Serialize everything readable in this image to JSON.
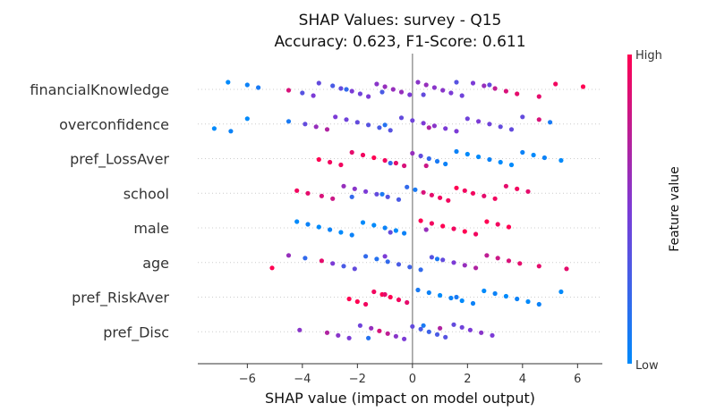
{
  "chart_data": {
    "type": "scatter",
    "title": "SHAP Values: survey - Q15",
    "subtitle": "Accuracy: 0.623, F1-Score: 0.611",
    "xlabel": "SHAP value (impact on model output)",
    "ylabel": "",
    "xlim": [
      -7.8,
      6.9
    ],
    "x_ticks": [
      "−6",
      "−4",
      "−2",
      "0",
      "2",
      "4",
      "6"
    ],
    "x_tick_values": [
      -6,
      -4,
      -2,
      0,
      2,
      4,
      6
    ],
    "colorbar": {
      "label": "Feature value",
      "high": "High",
      "low": "Low",
      "low_color": "#008afb",
      "mid_color": "#7c3bd6",
      "high_color": "#ff0052"
    },
    "grid": false,
    "zero_line": true,
    "features": [
      {
        "name": "financialKnowledge",
        "points": [
          [
            -6.7,
            0.0
          ],
          [
            -6.0,
            0.05
          ],
          [
            -5.6,
            0.1
          ],
          [
            -4.5,
            0.85
          ],
          [
            -4.0,
            0.35
          ],
          [
            -3.6,
            0.5
          ],
          [
            -3.4,
            0.4
          ],
          [
            -2.9,
            0.3
          ],
          [
            -2.6,
            0.4
          ],
          [
            -2.2,
            0.5
          ],
          [
            -1.9,
            0.45
          ],
          [
            -1.6,
            0.5
          ],
          [
            -1.3,
            0.55
          ],
          [
            -1.0,
            0.6
          ],
          [
            -0.7,
            0.6
          ],
          [
            -0.4,
            0.6
          ],
          [
            -0.1,
            0.5
          ],
          [
            0.2,
            0.55
          ],
          [
            0.5,
            0.6
          ],
          [
            0.8,
            0.55
          ],
          [
            1.1,
            0.55
          ],
          [
            1.4,
            0.5
          ],
          [
            1.8,
            0.45
          ],
          [
            2.2,
            0.5
          ],
          [
            2.6,
            0.6
          ],
          [
            3.0,
            0.75
          ],
          [
            3.4,
            0.85
          ],
          [
            3.8,
            0.9
          ],
          [
            4.6,
            0.9
          ],
          [
            5.2,
            0.95
          ],
          [
            6.2,
            1.0
          ],
          [
            -2.4,
            0.2
          ],
          [
            -1.1,
            0.3
          ],
          [
            0.4,
            0.4
          ],
          [
            1.6,
            0.35
          ],
          [
            2.8,
            0.4
          ]
        ]
      },
      {
        "name": "overconfidence",
        "points": [
          [
            -7.2,
            0.0
          ],
          [
            -6.6,
            0.05
          ],
          [
            -6.0,
            0.0
          ],
          [
            -4.5,
            0.1
          ],
          [
            -3.9,
            0.4
          ],
          [
            -3.5,
            0.6
          ],
          [
            -3.1,
            0.7
          ],
          [
            -2.8,
            0.5
          ],
          [
            -2.4,
            0.45
          ],
          [
            -2.0,
            0.4
          ],
          [
            -1.6,
            0.35
          ],
          [
            -1.2,
            0.3
          ],
          [
            -0.8,
            0.35
          ],
          [
            -0.4,
            0.4
          ],
          [
            0.0,
            0.45
          ],
          [
            0.4,
            0.5
          ],
          [
            0.8,
            0.55
          ],
          [
            1.2,
            0.5
          ],
          [
            1.6,
            0.5
          ],
          [
            2.0,
            0.45
          ],
          [
            2.4,
            0.5
          ],
          [
            2.8,
            0.45
          ],
          [
            3.2,
            0.4
          ],
          [
            3.6,
            0.4
          ],
          [
            4.0,
            0.4
          ],
          [
            4.6,
            0.85
          ],
          [
            5.0,
            0.1
          ],
          [
            -1.0,
            0.15
          ],
          [
            0.6,
            0.7
          ]
        ]
      },
      {
        "name": "pref_LossAver",
        "points": [
          [
            -3.4,
            1.0
          ],
          [
            -3.0,
            0.95
          ],
          [
            -2.6,
            0.95
          ],
          [
            -2.2,
            0.9
          ],
          [
            -1.8,
            0.95
          ],
          [
            -1.4,
            1.0
          ],
          [
            -1.0,
            0.95
          ],
          [
            -0.6,
            0.9
          ],
          [
            -0.3,
            0.85
          ],
          [
            0.0,
            0.6
          ],
          [
            0.3,
            0.4
          ],
          [
            0.6,
            0.2
          ],
          [
            0.9,
            0.1
          ],
          [
            1.2,
            0.05
          ],
          [
            1.6,
            0.05
          ],
          [
            2.0,
            0.0
          ],
          [
            2.4,
            0.0
          ],
          [
            2.8,
            0.05
          ],
          [
            3.2,
            0.0
          ],
          [
            3.6,
            0.0
          ],
          [
            4.0,
            0.05
          ],
          [
            4.4,
            0.0
          ],
          [
            4.8,
            0.05
          ],
          [
            5.4,
            0.0
          ],
          [
            -0.8,
            0.2
          ],
          [
            0.5,
            0.8
          ]
        ]
      },
      {
        "name": "school",
        "points": [
          [
            -4.2,
            0.95
          ],
          [
            -3.8,
            0.9
          ],
          [
            -3.3,
            0.85
          ],
          [
            -2.9,
            0.8
          ],
          [
            -2.5,
            0.6
          ],
          [
            -2.1,
            0.55
          ],
          [
            -1.7,
            0.5
          ],
          [
            -1.3,
            0.4
          ],
          [
            -0.9,
            0.35
          ],
          [
            -0.5,
            0.3
          ],
          [
            -0.2,
            0.2
          ],
          [
            0.1,
            0.1
          ],
          [
            0.4,
            0.85
          ],
          [
            0.7,
            0.9
          ],
          [
            1.0,
            0.95
          ],
          [
            1.3,
            0.95
          ],
          [
            1.6,
            1.0
          ],
          [
            1.9,
            0.95
          ],
          [
            2.2,
            0.95
          ],
          [
            2.6,
            0.9
          ],
          [
            3.0,
            0.95
          ],
          [
            3.4,
            0.9
          ],
          [
            3.8,
            0.95
          ],
          [
            4.2,
            0.9
          ],
          [
            -1.1,
            0.1
          ],
          [
            -2.2,
            0.2
          ]
        ]
      },
      {
        "name": "male",
        "points": [
          [
            -4.2,
            0.0
          ],
          [
            -3.8,
            0.05
          ],
          [
            -3.4,
            0.0
          ],
          [
            -3.0,
            0.05
          ],
          [
            -2.6,
            0.0
          ],
          [
            -2.2,
            0.05
          ],
          [
            -1.8,
            0.0
          ],
          [
            -1.4,
            0.0
          ],
          [
            -1.0,
            0.05
          ],
          [
            -0.6,
            0.0
          ],
          [
            -0.3,
            0.05
          ],
          [
            0.3,
            1.0
          ],
          [
            0.7,
            0.95
          ],
          [
            1.1,
            1.0
          ],
          [
            1.5,
            0.95
          ],
          [
            1.9,
            1.0
          ],
          [
            2.3,
            0.95
          ],
          [
            2.7,
            1.0
          ],
          [
            3.1,
            0.95
          ],
          [
            3.5,
            1.0
          ],
          [
            0.5,
            0.6
          ],
          [
            -0.8,
            0.4
          ]
        ]
      },
      {
        "name": "age",
        "points": [
          [
            -5.1,
            1.0
          ],
          [
            -4.5,
            0.6
          ],
          [
            -3.9,
            0.2
          ],
          [
            -3.3,
            0.9
          ],
          [
            -2.9,
            0.5
          ],
          [
            -2.5,
            0.3
          ],
          [
            -2.1,
            0.4
          ],
          [
            -1.7,
            0.2
          ],
          [
            -1.3,
            0.15
          ],
          [
            -0.9,
            0.2
          ],
          [
            -0.5,
            0.3
          ],
          [
            -0.1,
            0.25
          ],
          [
            0.3,
            0.2
          ],
          [
            0.7,
            0.35
          ],
          [
            1.1,
            0.4
          ],
          [
            1.5,
            0.5
          ],
          [
            1.9,
            0.6
          ],
          [
            2.3,
            0.7
          ],
          [
            2.7,
            0.75
          ],
          [
            3.1,
            0.8
          ],
          [
            3.5,
            0.85
          ],
          [
            3.9,
            0.9
          ],
          [
            4.6,
            0.9
          ],
          [
            5.6,
            0.9
          ],
          [
            -1.0,
            0.5
          ],
          [
            0.9,
            0.1
          ]
        ]
      },
      {
        "name": "pref_RiskAver",
        "points": [
          [
            -2.3,
            1.0
          ],
          [
            -2.0,
            1.0
          ],
          [
            -1.7,
            0.95
          ],
          [
            -1.4,
            0.95
          ],
          [
            -1.1,
            1.0
          ],
          [
            -0.8,
            1.0
          ],
          [
            -0.5,
            0.95
          ],
          [
            -0.2,
            0.9
          ],
          [
            0.2,
            0.1
          ],
          [
            0.6,
            0.05
          ],
          [
            1.0,
            0.0
          ],
          [
            1.4,
            0.05
          ],
          [
            1.8,
            0.0
          ],
          [
            2.2,
            0.05
          ],
          [
            2.6,
            0.0
          ],
          [
            3.0,
            0.05
          ],
          [
            3.4,
            0.0
          ],
          [
            3.8,
            0.05
          ],
          [
            4.2,
            0.0
          ],
          [
            4.6,
            0.05
          ],
          [
            5.4,
            0.0
          ],
          [
            -1.0,
            0.9
          ],
          [
            1.6,
            0.1
          ]
        ]
      },
      {
        "name": "pref_Disc",
        "points": [
          [
            -4.1,
            0.55
          ],
          [
            -3.1,
            0.7
          ],
          [
            -2.7,
            0.55
          ],
          [
            -2.3,
            0.5
          ],
          [
            -1.9,
            0.45
          ],
          [
            -1.5,
            0.6
          ],
          [
            -1.2,
            0.85
          ],
          [
            -0.9,
            0.75
          ],
          [
            -0.6,
            0.55
          ],
          [
            -0.3,
            0.5
          ],
          [
            0.0,
            0.4
          ],
          [
            0.3,
            0.3
          ],
          [
            0.6,
            0.25
          ],
          [
            0.9,
            0.3
          ],
          [
            1.2,
            0.35
          ],
          [
            1.5,
            0.4
          ],
          [
            1.8,
            0.45
          ],
          [
            2.1,
            0.5
          ],
          [
            2.5,
            0.55
          ],
          [
            2.9,
            0.5
          ],
          [
            -1.6,
            0.15
          ],
          [
            0.4,
            0.1
          ],
          [
            1.0,
            0.7
          ]
        ]
      }
    ]
  }
}
